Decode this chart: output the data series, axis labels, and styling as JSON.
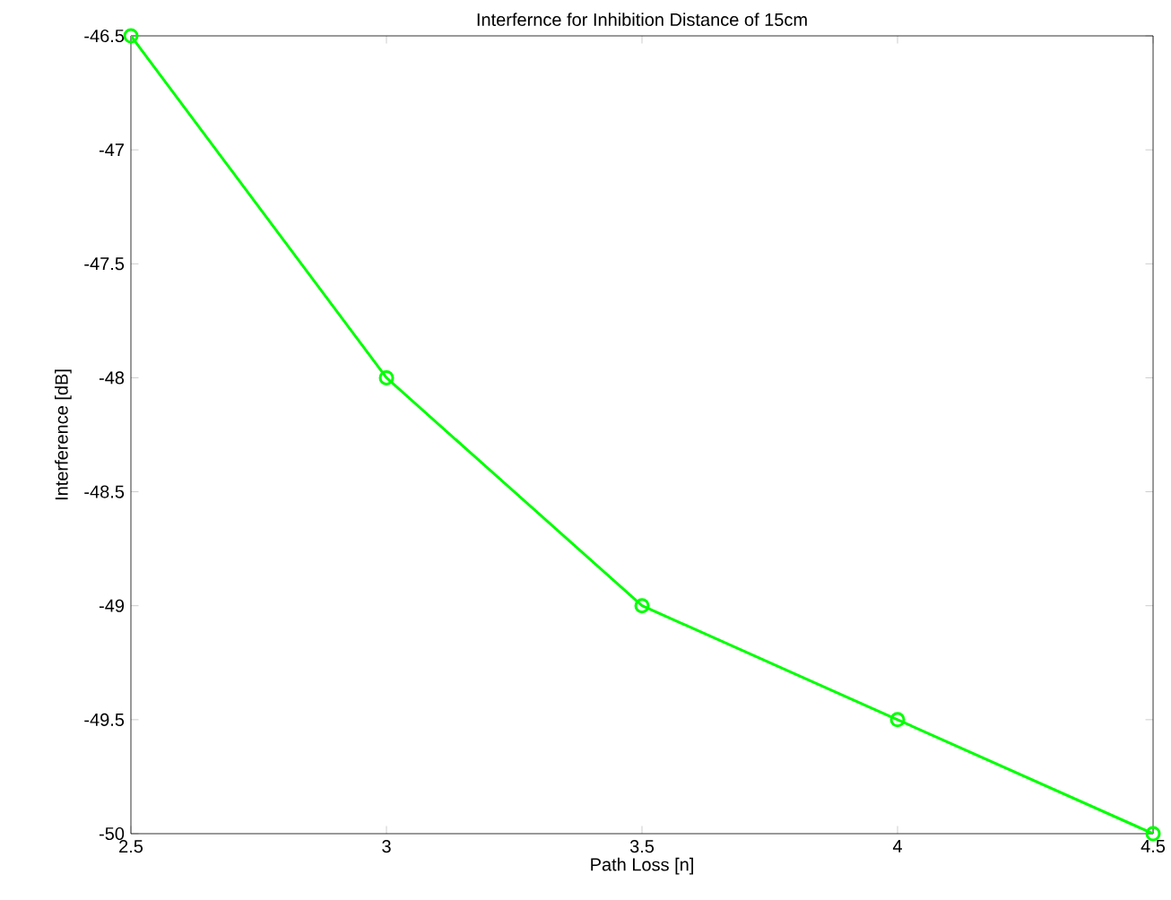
{
  "chart_data": {
    "type": "line",
    "title": "Interfernce for Inhibition Distance of 15cm",
    "xlabel": "Path Loss [n]",
    "ylabel": "Interference [dB]",
    "x": [
      2.5,
      3,
      3.5,
      4,
      4.5
    ],
    "series": [
      {
        "color": "#00ff00",
        "values": [
          -46.5,
          -48,
          -49,
          -49.5,
          -50
        ]
      }
    ],
    "xlim": [
      2.5,
      4.5
    ],
    "xticks": [
      2.5,
      3,
      3.5,
      4,
      4.5
    ],
    "ylim": [
      -50,
      -46.5
    ],
    "yticks": [
      -50,
      -49.5,
      -49,
      -48.5,
      -48,
      -47.5,
      -47,
      -46.5
    ],
    "marker": "circle",
    "line_style": "solid",
    "grid": false
  }
}
